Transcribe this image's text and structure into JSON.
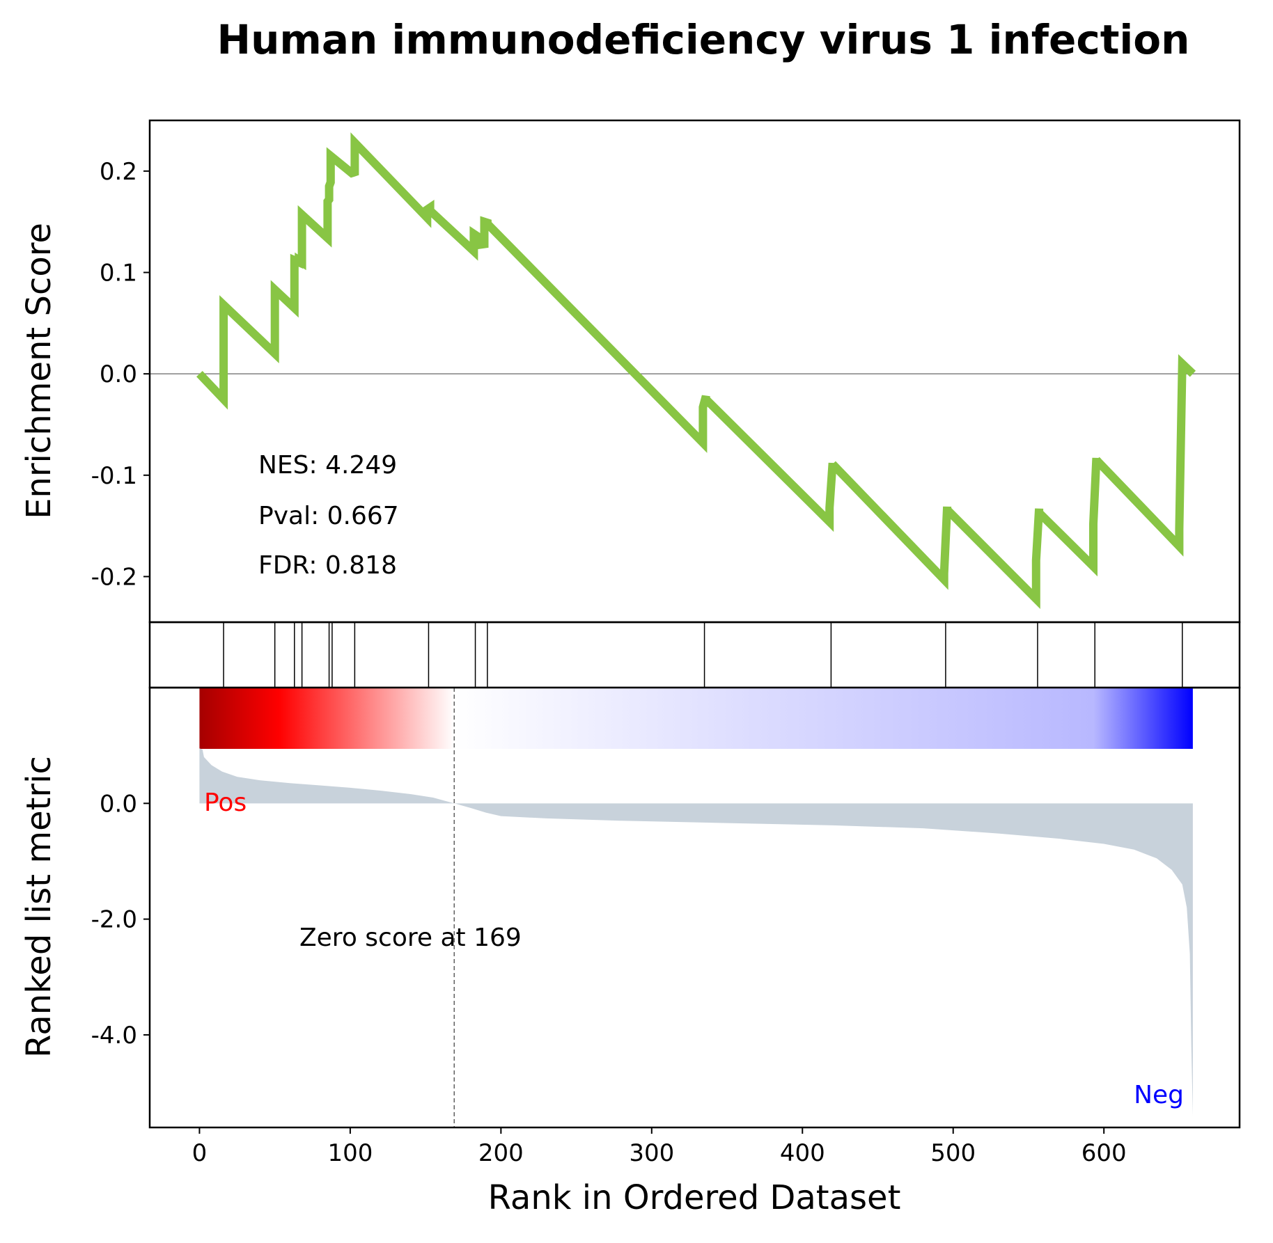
{
  "chart_data": {
    "type": "line",
    "title": "Human immunodeficiency virus 1 infection",
    "xlabel": "Rank in Ordered Dataset",
    "xlim": [
      -33,
      690
    ],
    "xticks": [
      {
        "value": 0,
        "label": "0"
      },
      {
        "value": 100,
        "label": "100"
      },
      {
        "value": 200,
        "label": "200"
      },
      {
        "value": 300,
        "label": "300"
      },
      {
        "value": 400,
        "label": "400"
      },
      {
        "value": 500,
        "label": "500"
      },
      {
        "value": 600,
        "label": "600"
      }
    ],
    "enrichment": {
      "ylabel": "Enrichment Score",
      "ylim": [
        -0.245,
        0.25
      ],
      "line_color": "#88c544",
      "yticks": [
        {
          "value": 0.2,
          "label": "0.2"
        },
        {
          "value": 0.1,
          "label": "0.1"
        },
        {
          "value": 0.0,
          "label": "0.0"
        },
        {
          "value": -0.1,
          "label": "-0.1"
        },
        {
          "value": -0.2,
          "label": "-0.2"
        }
      ],
      "x": [
        0,
        16,
        16,
        50,
        50,
        63,
        63,
        66,
        66,
        68,
        68,
        85,
        85,
        86,
        86,
        87,
        87,
        101,
        101,
        103,
        103,
        151,
        151,
        153,
        153,
        182,
        182,
        184,
        184,
        189,
        189,
        191,
        191,
        334,
        334,
        336,
        336,
        418,
        418,
        420,
        420,
        494,
        494,
        496,
        496,
        555,
        555,
        557,
        557,
        593,
        593,
        595,
        595,
        650,
        650,
        652,
        652,
        659
      ],
      "y": [
        0.0,
        -0.025,
        0.068,
        0.02,
        0.083,
        0.065,
        0.112,
        0.11,
        0.112,
        0.11,
        0.157,
        0.134,
        0.17,
        0.172,
        0.185,
        0.189,
        0.215,
        0.198,
        0.198,
        0.199,
        0.228,
        0.154,
        0.162,
        0.164,
        0.161,
        0.121,
        0.138,
        0.136,
        0.127,
        0.128,
        0.15,
        0.149,
        0.148,
        -0.068,
        -0.033,
        -0.022,
        -0.025,
        -0.146,
        -0.132,
        -0.088,
        -0.089,
        -0.203,
        -0.197,
        -0.131,
        -0.134,
        -0.222,
        -0.184,
        -0.133,
        -0.137,
        -0.19,
        -0.148,
        -0.083,
        -0.085,
        -0.17,
        -0.153,
        0.01,
        0.01,
        0.0
      ],
      "annotations": {
        "nes": "NES: 4.249",
        "pval": "Pval: 0.667",
        "fdr": "FDR: 0.818"
      }
    },
    "hits": [
      16,
      50,
      63,
      68,
      86,
      88,
      103,
      152,
      183,
      191,
      335,
      419,
      495,
      556,
      594,
      652
    ],
    "ranked_metric": {
      "ylabel": "Ranked list metric",
      "ylim": [
        -5.6,
        2.0
      ],
      "fill_color": "#c8d2db",
      "yticks": [
        {
          "value": 0.0,
          "label": "0.0"
        },
        {
          "value": -2.0,
          "label": "-2.0"
        },
        {
          "value": -4.0,
          "label": "-4.0"
        }
      ],
      "curve": [
        {
          "rank": 0,
          "value": 0.95
        },
        {
          "rank": 2,
          "value": 0.93
        },
        {
          "rank": 3,
          "value": 0.8
        },
        {
          "rank": 8,
          "value": 0.66
        },
        {
          "rank": 15,
          "value": 0.55
        },
        {
          "rank": 25,
          "value": 0.46
        },
        {
          "rank": 40,
          "value": 0.4
        },
        {
          "rank": 60,
          "value": 0.35
        },
        {
          "rank": 80,
          "value": 0.31
        },
        {
          "rank": 100,
          "value": 0.27
        },
        {
          "rank": 120,
          "value": 0.22
        },
        {
          "rank": 140,
          "value": 0.16
        },
        {
          "rank": 155,
          "value": 0.1
        },
        {
          "rank": 169,
          "value": 0.0
        },
        {
          "rank": 180,
          "value": -0.08
        },
        {
          "rank": 190,
          "value": -0.16
        },
        {
          "rank": 200,
          "value": -0.22
        },
        {
          "rank": 230,
          "value": -0.26
        },
        {
          "rank": 280,
          "value": -0.3
        },
        {
          "rank": 350,
          "value": -0.34
        },
        {
          "rank": 420,
          "value": -0.38
        },
        {
          "rank": 480,
          "value": -0.43
        },
        {
          "rank": 530,
          "value": -0.52
        },
        {
          "rank": 570,
          "value": -0.61
        },
        {
          "rank": 600,
          "value": -0.7
        },
        {
          "rank": 620,
          "value": -0.8
        },
        {
          "rank": 635,
          "value": -0.95
        },
        {
          "rank": 645,
          "value": -1.15
        },
        {
          "rank": 652,
          "value": -1.4
        },
        {
          "rank": 655,
          "value": -1.8
        },
        {
          "rank": 657,
          "value": -2.6
        },
        {
          "rank": 658,
          "value": -4.2
        },
        {
          "rank": 659,
          "value": -5.4
        }
      ],
      "zero_score_rank": 169,
      "zero_score_label": "Zero score at 169",
      "pos_label": "Pos",
      "pos_color": "#ff0000",
      "neg_label": "Neg",
      "neg_color": "#0000ff",
      "heatmap_colors": [
        "#a50000",
        "#ff0000",
        "#ffffff",
        "#ddddff",
        "#0000ff"
      ]
    }
  }
}
